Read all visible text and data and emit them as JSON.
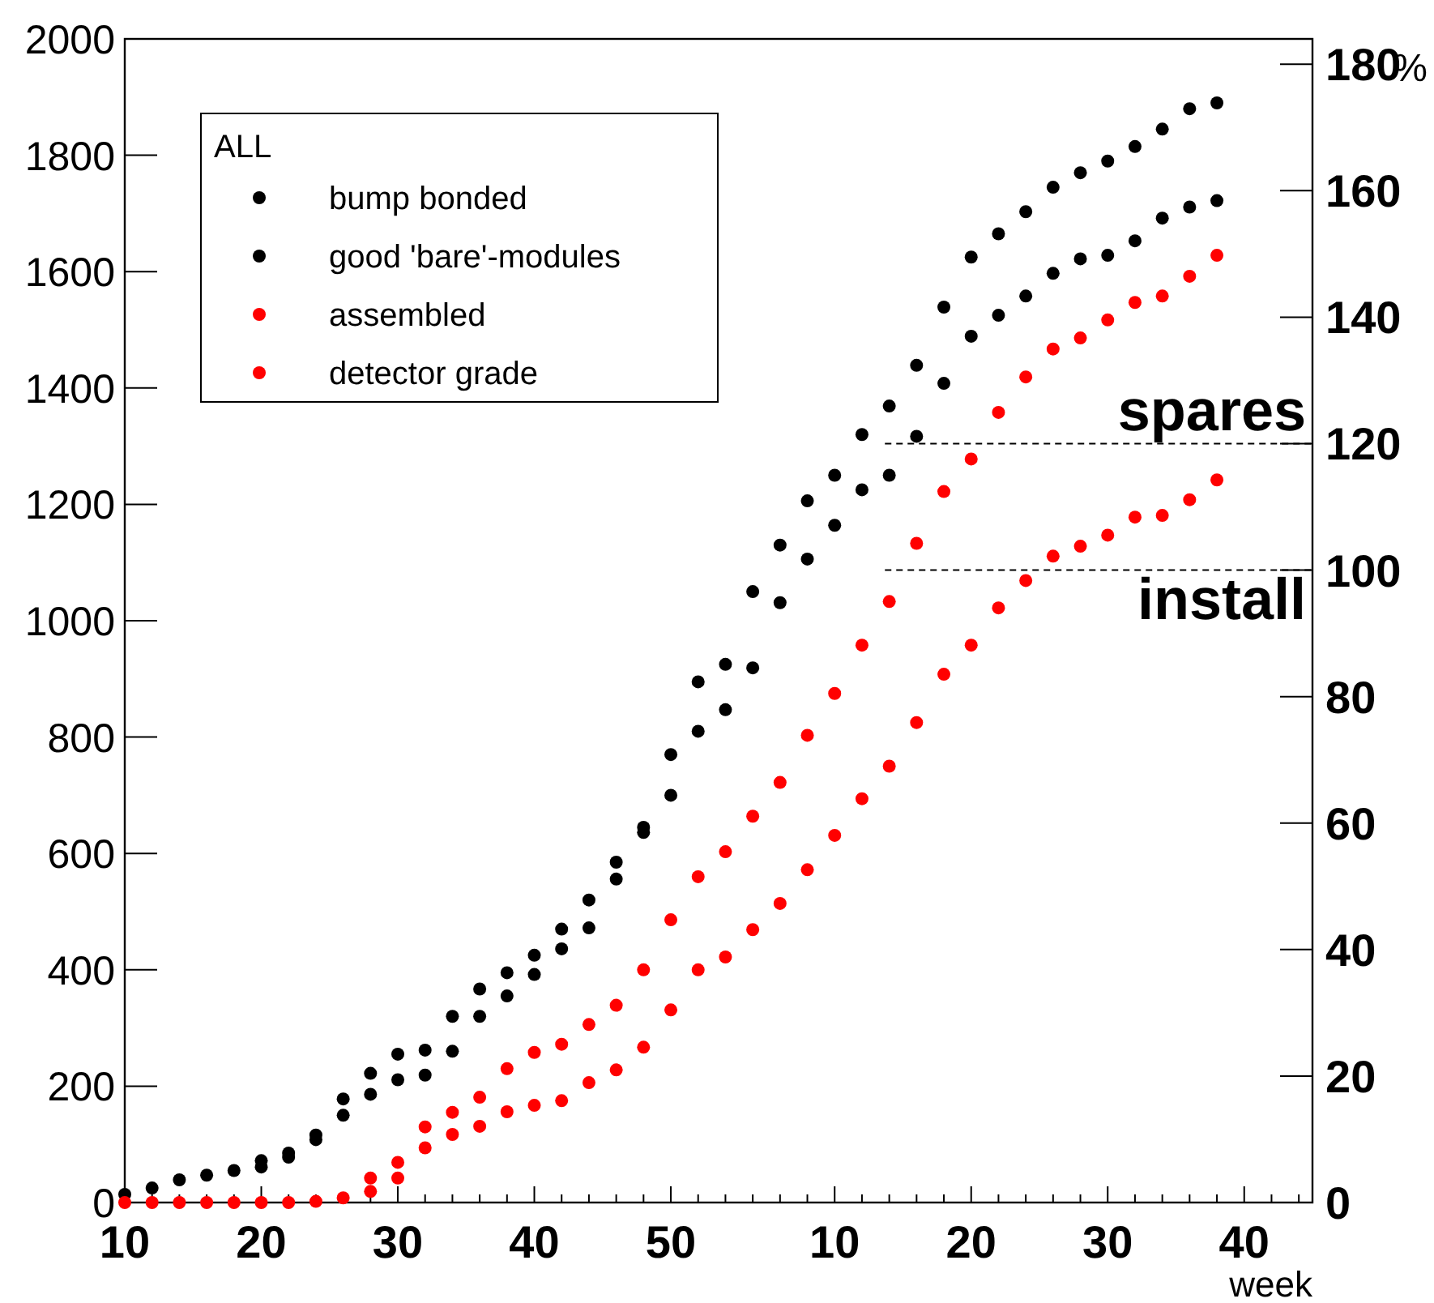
{
  "chart_data": {
    "type": "scatter",
    "xlabel": "week",
    "y2label": "%",
    "legend_title": "ALL",
    "legend": "top left",
    "marker": "circle",
    "grid": false,
    "categories": [
      "10",
      null,
      null,
      null,
      null,
      null,
      null,
      null,
      null,
      null,
      "20",
      null,
      null,
      null,
      null,
      null,
      null,
      null,
      null,
      null,
      "30",
      null,
      null,
      null,
      null,
      null,
      null,
      null,
      null,
      null,
      "40",
      null,
      null,
      null,
      null,
      null,
      null,
      null,
      null,
      null,
      "50",
      null,
      null,
      null,
      null,
      null,
      null,
      null,
      null,
      null,
      null,
      null,
      "10",
      null,
      null,
      null,
      null,
      null,
      null,
      null,
      null,
      null,
      "20",
      null,
      null,
      null,
      null,
      null,
      null,
      null,
      null,
      null,
      "30",
      null,
      null,
      null,
      null,
      null,
      null,
      null,
      null,
      null,
      "40",
      null,
      null,
      null,
      null,
      null
    ],
    "ylim": [
      0,
      2000
    ],
    "yticks": [
      0,
      200,
      400,
      600,
      800,
      1000,
      1200,
      1400,
      1600,
      1800,
      2000
    ],
    "y2lim": [
      0,
      184
    ],
    "y2ticks": [
      0,
      20,
      40,
      60,
      80,
      100,
      120,
      140,
      160,
      180
    ],
    "series": [
      {
        "name": "bump bonded",
        "color": "#000000",
        "values": [
          null,
          null,
          null,
          null,
          null,
          null,
          null,
          null,
          null,
          null,
          72,
          null,
          85,
          null,
          116,
          null,
          178,
          null,
          222,
          null,
          255,
          null,
          262,
          null,
          320,
          null,
          367,
          null,
          395,
          null,
          425,
          null,
          470,
          null,
          520,
          null,
          585,
          null,
          645,
          null,
          770,
          null,
          895,
          null,
          925,
          null,
          1050,
          null,
          1130,
          null,
          1206,
          null,
          1250,
          null,
          1320,
          null,
          1369,
          null,
          1439,
          null,
          1539,
          null,
          1625,
          null,
          1665,
          null,
          1703,
          null,
          1745,
          null,
          1770,
          null,
          1790,
          null,
          1815,
          null,
          1845,
          null,
          1880,
          null,
          1890,
          null,
          null,
          null,
          null,
          null,
          null,
          null
        ]
      },
      {
        "name": "good 'bare'-modules",
        "color": "#000000",
        "values": [
          14,
          null,
          25,
          null,
          39,
          null,
          47,
          null,
          55,
          null,
          61,
          null,
          78,
          null,
          108,
          null,
          150,
          null,
          186,
          null,
          211,
          null,
          219,
          null,
          260,
          null,
          320,
          null,
          355,
          null,
          392,
          null,
          436,
          null,
          472,
          null,
          556,
          null,
          636,
          null,
          700,
          null,
          810,
          null,
          847,
          null,
          919,
          null,
          1031,
          null,
          1106,
          null,
          1164,
          null,
          1225,
          null,
          1250,
          null,
          1317,
          null,
          1408,
          null,
          1489,
          null,
          1525,
          null,
          1558,
          null,
          1597,
          null,
          1622,
          null,
          1628,
          null,
          1653,
          null,
          1692,
          null,
          1711,
          null,
          1722,
          null,
          null,
          null,
          null,
          null,
          null,
          null
        ]
      },
      {
        "name": "assembled",
        "color": "#ff0000",
        "values": [
          null,
          null,
          null,
          null,
          null,
          null,
          null,
          null,
          null,
          null,
          null,
          null,
          null,
          null,
          null,
          null,
          null,
          null,
          42,
          null,
          69,
          null,
          130,
          null,
          155,
          null,
          181,
          null,
          230,
          null,
          258,
          null,
          272,
          null,
          306,
          null,
          339,
          null,
          400,
          null,
          486,
          null,
          560,
          null,
          603,
          null,
          664,
          null,
          722,
          null,
          803,
          null,
          875,
          null,
          958,
          null,
          1033,
          null,
          1133,
          null,
          1222,
          null,
          1278,
          null,
          1358,
          null,
          1419,
          null,
          1467,
          null,
          1486,
          null,
          1517,
          null,
          1547,
          null,
          1558,
          null,
          1592,
          null,
          1628,
          null,
          null,
          null,
          null,
          null,
          null,
          null
        ]
      },
      {
        "name": "detector grade",
        "color": "#ff0000",
        "values": [
          0,
          null,
          0,
          null,
          0,
          null,
          0,
          null,
          0,
          null,
          0,
          null,
          0,
          null,
          2,
          null,
          8,
          null,
          19,
          null,
          42,
          null,
          94,
          null,
          117,
          null,
          131,
          null,
          156,
          null,
          167,
          null,
          175,
          null,
          206,
          null,
          228,
          null,
          267,
          null,
          331,
          null,
          400,
          null,
          422,
          null,
          469,
          null,
          514,
          null,
          572,
          null,
          631,
          null,
          694,
          null,
          750,
          null,
          825,
          null,
          908,
          null,
          958,
          null,
          1022,
          null,
          1069,
          null,
          1111,
          null,
          1128,
          null,
          1147,
          null,
          1178,
          null,
          1181,
          null,
          1208,
          null,
          1242,
          null,
          null,
          null,
          null,
          null,
          null,
          null
        ]
      }
    ],
    "ref_lines": [
      {
        "axis": "y2",
        "value": 120,
        "label": "spares",
        "color": "#000000",
        "line_style": "dashed"
      },
      {
        "axis": "y2",
        "value": 100,
        "label": "install",
        "color": "#000000",
        "line_style": "dashed"
      }
    ]
  }
}
